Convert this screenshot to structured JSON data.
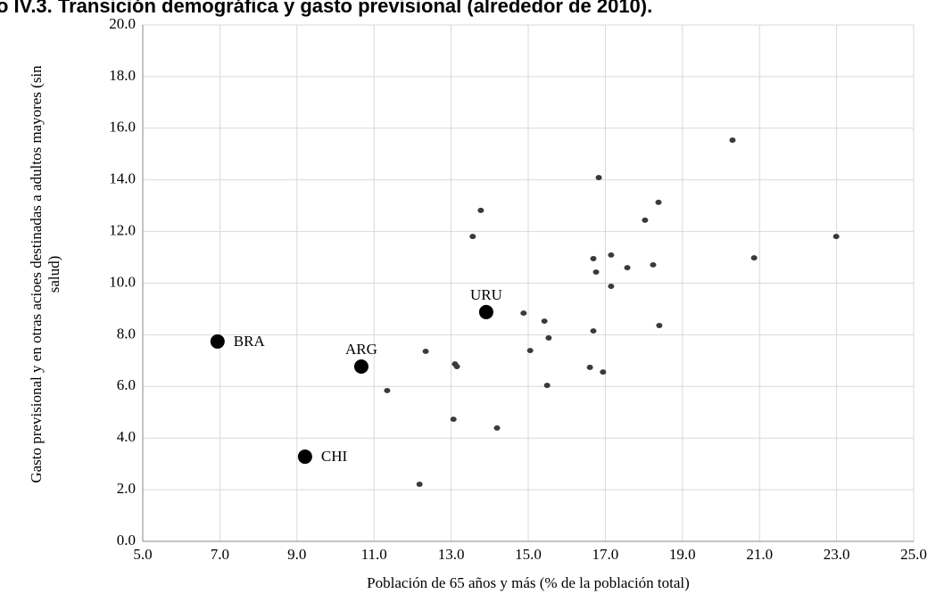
{
  "chart_data": {
    "type": "scatter",
    "title": "o IV.3. Transición demográfica y gasto previsional (alrededor de 2010).",
    "xlabel": "Población de 65 años y más (% de la población total)",
    "ylabel": [
      "Gasto previsional y en otras acioes destinadas a adultos mayores (sin",
      "salud)"
    ],
    "xlim": [
      5,
      25
    ],
    "ylim": [
      0,
      20
    ],
    "xticks": [
      {
        "value": 5,
        "label": "5.0"
      },
      {
        "value": 7,
        "label": "7.0"
      },
      {
        "value": 9,
        "label": "9.0"
      },
      {
        "value": 11,
        "label": "11.0"
      },
      {
        "value": 13,
        "label": "13.0"
      },
      {
        "value": 15,
        "label": "15.0"
      },
      {
        "value": 17,
        "label": "17.0"
      },
      {
        "value": 19,
        "label": "19.0"
      },
      {
        "value": 21,
        "label": "21.0"
      },
      {
        "value": 23,
        "label": "23.0"
      },
      {
        "value": 25,
        "label": "25.0"
      }
    ],
    "yticks": [
      {
        "value": 0,
        "label": "0.0"
      },
      {
        "value": 2,
        "label": "2.0"
      },
      {
        "value": 4,
        "label": "4.0"
      },
      {
        "value": 6,
        "label": "6.0"
      },
      {
        "value": 8,
        "label": "8.0"
      },
      {
        "value": 10,
        "label": "10.0"
      },
      {
        "value": 12,
        "label": "12.0"
      },
      {
        "value": 14,
        "label": "14.0"
      },
      {
        "value": 16,
        "label": "16.0"
      },
      {
        "value": 18,
        "label": "18.0"
      },
      {
        "value": 20,
        "label": "20.0"
      }
    ],
    "grid": true,
    "series": [
      {
        "color": "#3a3a3a",
        "x": [
          20.3,
          16.83,
          18.38,
          13.77,
          18.03,
          13.56,
          22.99,
          17.15,
          16.69,
          20.86,
          17.57,
          18.24,
          16.76,
          17.15,
          14.88,
          15.42,
          15.53,
          16.69,
          18.4,
          12.34,
          15.05,
          13.1,
          13.15,
          16.6,
          16.94,
          15.49,
          11.34,
          13.06,
          14.19,
          12.18
        ],
        "values": [
          15.54,
          14.09,
          13.13,
          12.82,
          12.44,
          11.81,
          11.81,
          11.09,
          10.95,
          10.98,
          10.6,
          10.71,
          10.43,
          9.88,
          8.84,
          8.53,
          7.88,
          8.15,
          8.36,
          7.36,
          7.39,
          6.87,
          6.77,
          6.74,
          6.56,
          6.04,
          5.84,
          4.73,
          4.39,
          2.21
        ]
      },
      {
        "color": "#000000",
        "x": [
          6.94,
          10.67,
          9.21,
          13.91
        ],
        "values": [
          7.74,
          6.77,
          3.28,
          8.88
        ],
        "labels": [
          "BRA",
          "ARG",
          "CHI",
          "URU"
        ],
        "label_position": [
          "right",
          "above",
          "right",
          "above"
        ]
      }
    ]
  }
}
